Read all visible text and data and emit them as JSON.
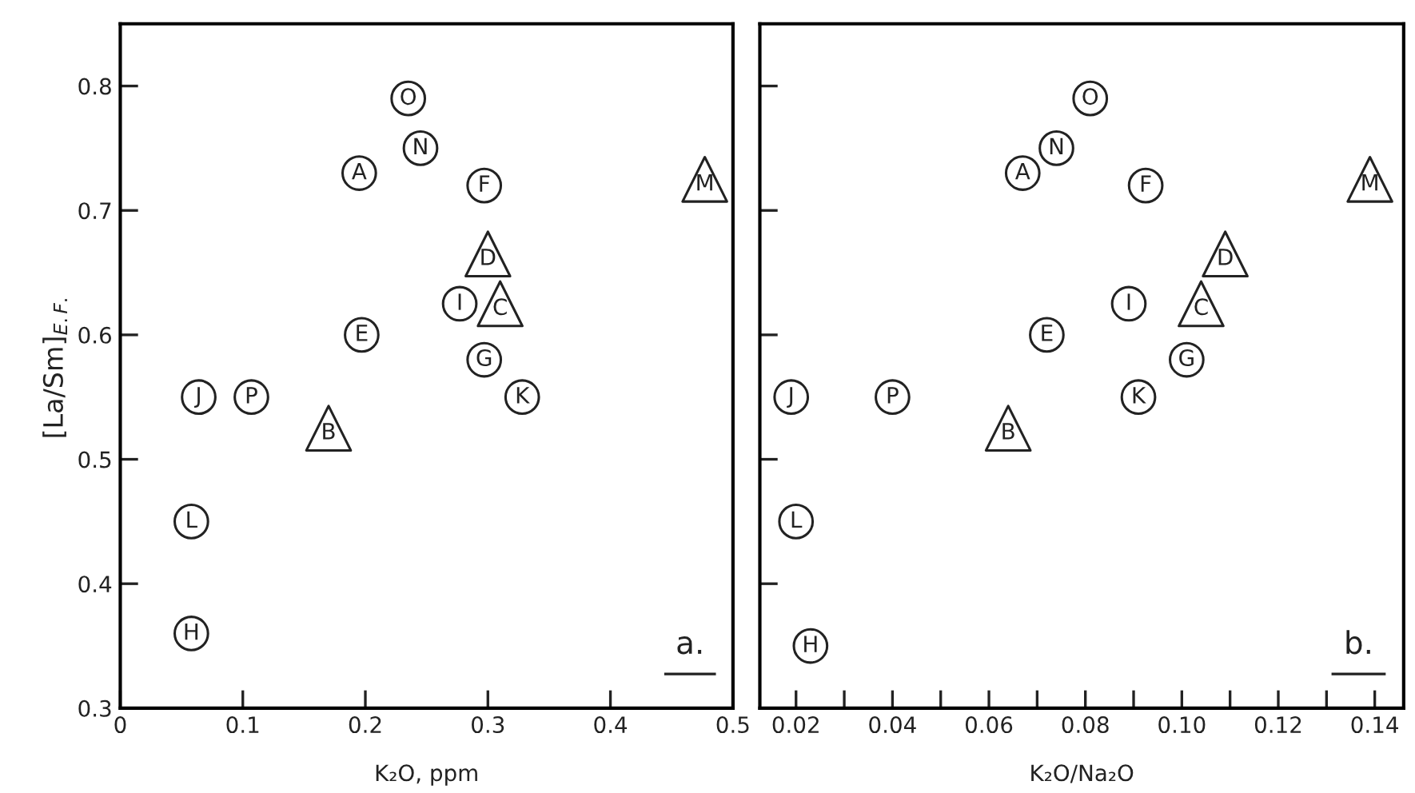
{
  "chart_data": [
    {
      "type": "scatter",
      "xlabel": "K₂O, ppm",
      "ylabel": "[La/Sm]$_{E.F.}$",
      "xlim": [
        0,
        0.5
      ],
      "ylim": [
        0.3,
        0.85
      ],
      "xticks": [
        0,
        0.1,
        0.2,
        0.3,
        0.4,
        0.5
      ],
      "yticks": [
        0.3,
        0.4,
        0.5,
        0.6,
        0.7,
        0.8
      ],
      "annotations": [
        "a."
      ],
      "series": [
        {
          "marker": "circle",
          "color": "#222222",
          "x": [
            0.235,
            0.245,
            0.195,
            0.297,
            0.277,
            0.197,
            0.297,
            0.328,
            0.064,
            0.107,
            0.058,
            0.058
          ],
          "values": [
            0.79,
            0.75,
            0.73,
            0.72,
            0.625,
            0.6,
            0.58,
            0.55,
            0.55,
            0.55,
            0.45,
            0.36
          ],
          "value_labels": [
            "O",
            "N",
            "A",
            "F",
            "I",
            "E",
            "G",
            "K",
            "J",
            "P",
            "L",
            "H"
          ]
        },
        {
          "marker": "triangle",
          "color": "#222222",
          "x": [
            0.477,
            0.3,
            0.31,
            0.17
          ],
          "values": [
            0.725,
            0.665,
            0.625,
            0.525
          ],
          "value_labels": [
            "M",
            "D",
            "C",
            "B"
          ]
        }
      ]
    },
    {
      "type": "scatter",
      "xlabel": "K₂O/Na₂O",
      "xlim": [
        0.0125,
        0.146
      ],
      "ylim": [
        0.3,
        0.85
      ],
      "tick_labels": "x",
      "annotations": [
        "b."
      ],
      "xticks": [
        {
          "value": 0.02,
          "label": "0.02"
        },
        {
          "value": 0.03,
          "label": null
        },
        {
          "value": 0.04,
          "label": "0.04"
        },
        {
          "value": 0.05,
          "label": null
        },
        {
          "value": 0.06,
          "label": "0.06"
        },
        {
          "value": 0.07,
          "label": null
        },
        {
          "value": 0.08,
          "label": "0.08"
        },
        {
          "value": 0.09,
          "label": null
        },
        {
          "value": 0.1,
          "label": "0.10"
        },
        {
          "value": 0.11,
          "label": null
        },
        {
          "value": 0.12,
          "label": "0.12"
        },
        {
          "value": 0.13,
          "label": null
        },
        {
          "value": 0.14,
          "label": "0.14"
        }
      ],
      "yticks": [
        0.3,
        0.4,
        0.5,
        0.6,
        0.7,
        0.8
      ],
      "series": [
        {
          "marker": "circle",
          "color": "#222222",
          "x": [
            0.081,
            0.074,
            0.067,
            0.0925,
            0.089,
            0.072,
            0.101,
            0.091,
            0.019,
            0.04,
            0.02,
            0.023
          ],
          "values": [
            0.79,
            0.75,
            0.73,
            0.72,
            0.625,
            0.6,
            0.58,
            0.55,
            0.55,
            0.55,
            0.45,
            0.35
          ],
          "value_labels": [
            "O",
            "N",
            "A",
            "F",
            "I",
            "E",
            "G",
            "K",
            "J",
            "P",
            "L",
            "H"
          ]
        },
        {
          "marker": "triangle",
          "color": "#222222",
          "x": [
            0.139,
            0.109,
            0.104,
            0.064
          ],
          "values": [
            0.725,
            0.665,
            0.625,
            0.525
          ],
          "value_labels": [
            "M",
            "D",
            "C",
            "B"
          ]
        }
      ]
    }
  ]
}
